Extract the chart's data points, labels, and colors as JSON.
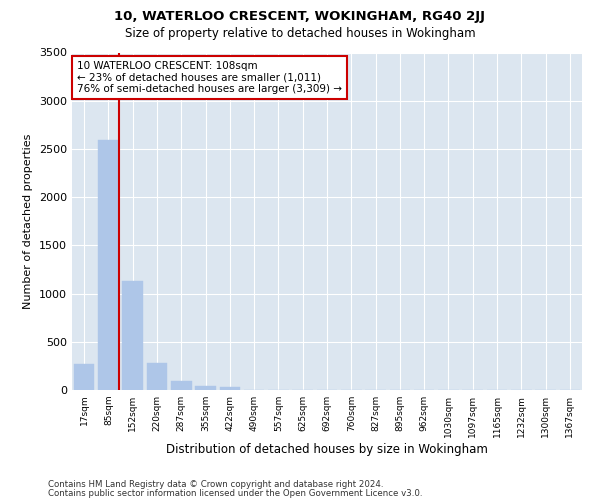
{
  "title1": "10, WATERLOO CRESCENT, WOKINGHAM, RG40 2JJ",
  "title2": "Size of property relative to detached houses in Wokingham",
  "xlabel": "Distribution of detached houses by size in Wokingham",
  "ylabel": "Number of detached properties",
  "categories": [
    "17sqm",
    "85sqm",
    "152sqm",
    "220sqm",
    "287sqm",
    "355sqm",
    "422sqm",
    "490sqm",
    "557sqm",
    "625sqm",
    "692sqm",
    "760sqm",
    "827sqm",
    "895sqm",
    "962sqm",
    "1030sqm",
    "1097sqm",
    "1165sqm",
    "1232sqm",
    "1300sqm",
    "1367sqm"
  ],
  "values": [
    270,
    2590,
    1130,
    280,
    90,
    45,
    30,
    0,
    0,
    0,
    0,
    0,
    0,
    0,
    0,
    0,
    0,
    0,
    0,
    0,
    0
  ],
  "bar_color": "#aec6e8",
  "bar_edge_color": "#aec6e8",
  "vline_color": "#cc0000",
  "annotation_text": "10 WATERLOO CRESCENT: 108sqm\n← 23% of detached houses are smaller (1,011)\n76% of semi-detached houses are larger (3,309) →",
  "annotation_box_color": "#ffffff",
  "annotation_box_edge": "#cc0000",
  "ylim": [
    0,
    3500
  ],
  "yticks": [
    0,
    500,
    1000,
    1500,
    2000,
    2500,
    3000,
    3500
  ],
  "plot_bg_color": "#dce6f0",
  "fig_bg_color": "#ffffff",
  "grid_color": "#ffffff",
  "footnote1": "Contains HM Land Registry data © Crown copyright and database right 2024.",
  "footnote2": "Contains public sector information licensed under the Open Government Licence v3.0."
}
